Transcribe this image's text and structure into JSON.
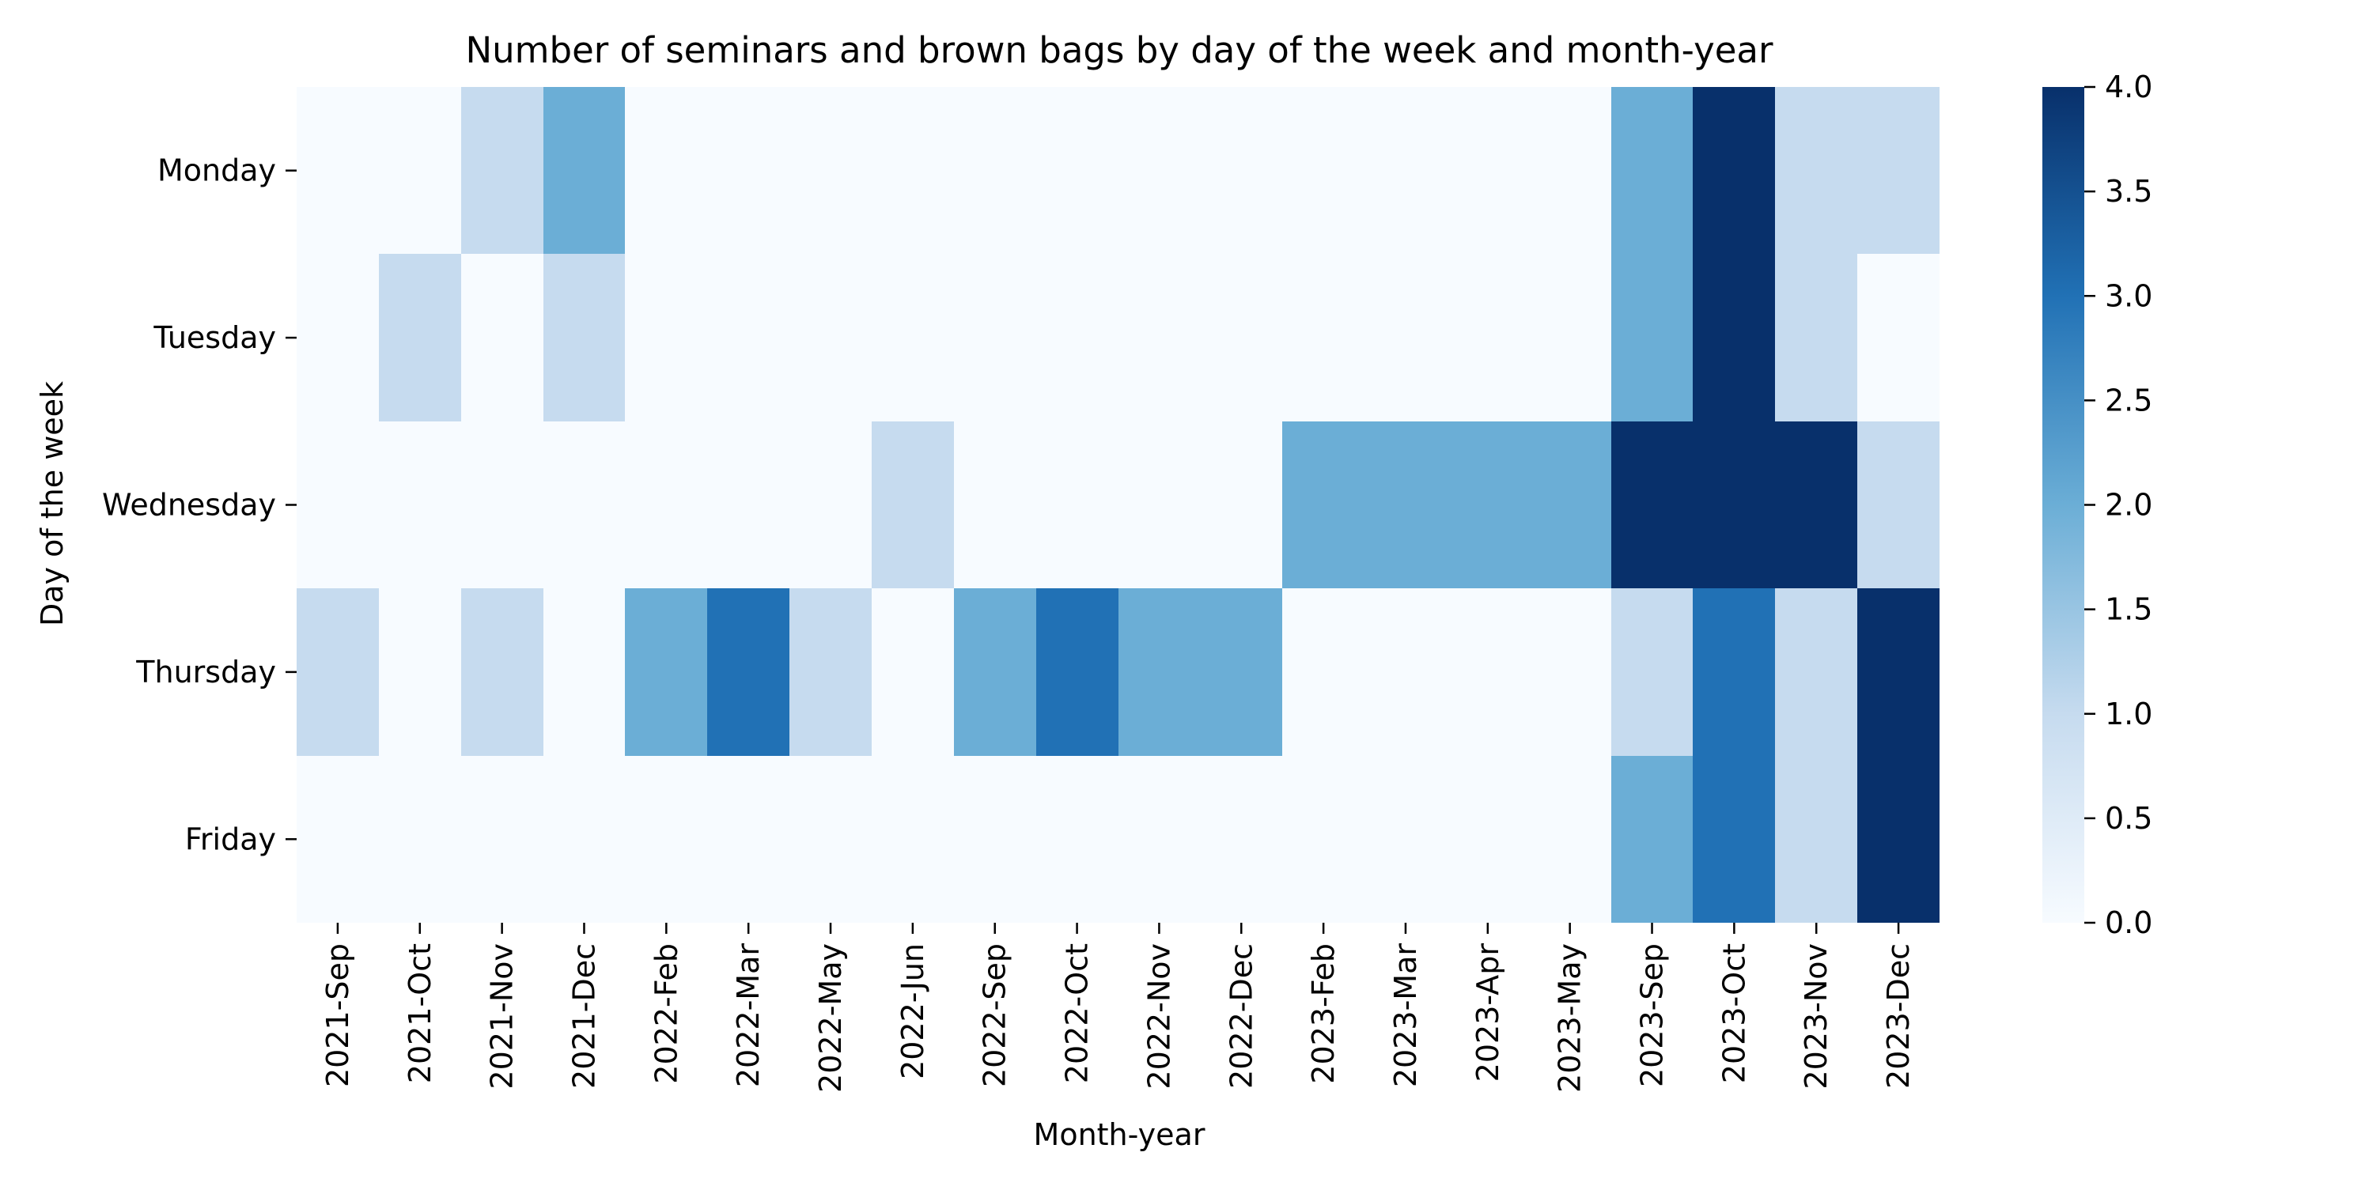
{
  "chart_data": {
    "type": "heatmap",
    "title": "Number of seminars and brown bags by day of the week and month-year",
    "xlabel": "Month-year",
    "ylabel": "Day of the week",
    "x_categories": [
      "2021-Sep",
      "2021-Oct",
      "2021-Nov",
      "2021-Dec",
      "2022-Feb",
      "2022-Mar",
      "2022-May",
      "2022-Jun",
      "2022-Sep",
      "2022-Oct",
      "2022-Nov",
      "2022-Dec",
      "2023-Feb",
      "2023-Mar",
      "2023-Apr",
      "2023-May",
      "2023-Sep",
      "2023-Oct",
      "2023-Nov",
      "2023-Dec"
    ],
    "y_categories": [
      "Monday",
      "Tuesday",
      "Wednesday",
      "Thursday",
      "Friday"
    ],
    "values": [
      [
        0,
        0,
        1,
        2,
        0,
        0,
        0,
        0,
        0,
        0,
        0,
        0,
        0,
        0,
        0,
        0,
        2,
        4,
        1,
        1
      ],
      [
        0,
        1,
        0,
        1,
        0,
        0,
        0,
        0,
        0,
        0,
        0,
        0,
        0,
        0,
        0,
        0,
        2,
        4,
        1,
        0
      ],
      [
        0,
        0,
        0,
        0,
        0,
        0,
        0,
        1,
        0,
        0,
        0,
        0,
        2,
        2,
        2,
        2,
        4,
        4,
        4,
        1
      ],
      [
        1,
        0,
        1,
        0,
        2,
        3,
        1,
        0,
        2,
        3,
        2,
        2,
        0,
        0,
        0,
        0,
        1,
        3,
        1,
        4
      ],
      [
        0,
        0,
        0,
        0,
        0,
        0,
        0,
        0,
        0,
        0,
        0,
        0,
        0,
        0,
        0,
        0,
        2,
        3,
        1,
        4
      ]
    ],
    "colorbar": {
      "range": [
        0,
        4
      ],
      "ticks": [
        "0.0",
        "0.5",
        "1.0",
        "1.5",
        "2.0",
        "2.5",
        "3.0",
        "3.5",
        "4.0"
      ],
      "colormap": "Blues",
      "color_stops": [
        "#f7fbff",
        "#c6dbef",
        "#6baed6",
        "#2171b5",
        "#08306b"
      ]
    },
    "grid": false
  }
}
